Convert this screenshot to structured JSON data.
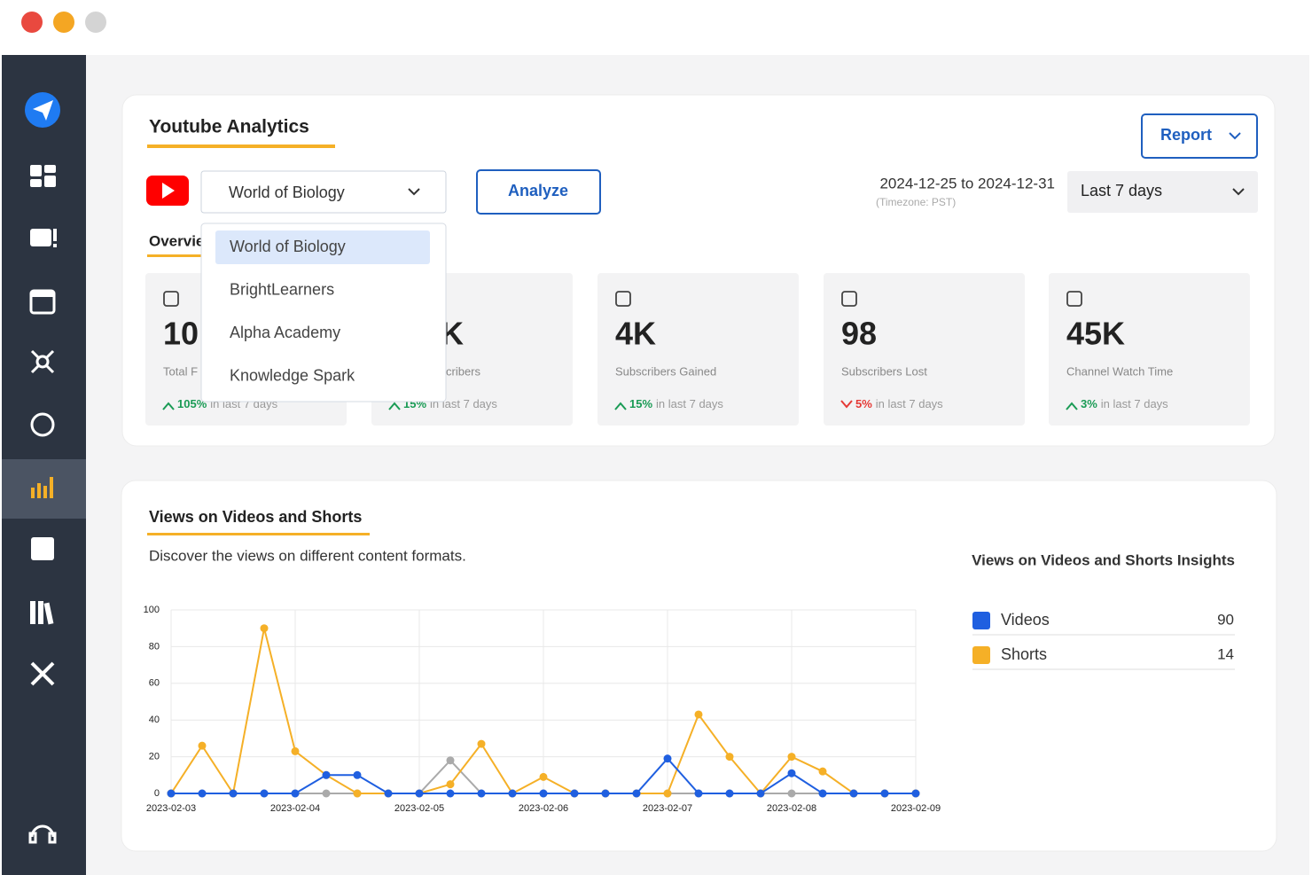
{
  "header": {
    "title": "Youtube Analytics",
    "report": "Report"
  },
  "channel": {
    "selected": "World of Biology",
    "options": [
      "World of Biology",
      "BrightLearners",
      "Alpha Academy",
      "Knowledge Spark"
    ]
  },
  "analyze": "Analyze",
  "date": {
    "range": "2024-12-25 to 2024-12-31",
    "timezone": "(Timezone: PST)",
    "period": "Last 7 days"
  },
  "tab": "Overview",
  "cards": [
    {
      "value": "10",
      "label": "Total F",
      "change": "105%",
      "period": "in last 7 days",
      "trend": "up"
    },
    {
      "value": "K",
      "label": "cribers",
      "change": "15%",
      "period": "in last 7 days",
      "trend": "up"
    },
    {
      "value": "4K",
      "label": "Subscribers Gained",
      "change": "15%",
      "period": "in last 7 days",
      "trend": "up"
    },
    {
      "value": "98",
      "label": "Subscribers Lost",
      "change": "5%",
      "period": "in last 7 days",
      "trend": "down"
    },
    {
      "value": "45K",
      "label": "Channel Watch Time",
      "change": "3%",
      "period": "in last 7 days",
      "trend": "up"
    }
  ],
  "chart_data": {
    "type": "line",
    "title": "Views on Videos and Shorts",
    "subtitle": "Discover the views on different content formats.",
    "insights_title": "Views on Videos and Shorts Insights",
    "categories": [
      "2023-02-03",
      null,
      null,
      null,
      "2023-02-04",
      null,
      null,
      null,
      "2023-02-05",
      null,
      null,
      null,
      "2023-02-06",
      null,
      null,
      null,
      "2023-02-07",
      null,
      null,
      null,
      "2023-02-08",
      null,
      null,
      null,
      "2023-02-09"
    ],
    "series": [
      {
        "color": "#aaaaaa",
        "values": [
          0,
          0,
          0,
          0,
          0,
          0,
          0,
          0,
          0,
          18,
          0,
          0,
          0,
          0,
          0,
          0,
          0,
          0,
          0,
          0,
          0,
          0,
          0,
          0,
          0
        ]
      },
      {
        "name": "Shorts",
        "total": 14,
        "color": "#f5b027",
        "values": [
          0,
          26,
          0,
          90,
          23,
          10,
          0,
          0,
          0,
          5,
          27,
          0,
          9,
          0,
          0,
          0,
          0,
          43,
          20,
          0,
          20,
          12,
          0,
          0,
          0
        ]
      },
      {
        "name": "Videos",
        "total": 90,
        "color": "#1f5fe0",
        "values": [
          0,
          0,
          0,
          0,
          0,
          10,
          10,
          0,
          0,
          0,
          0,
          0,
          0,
          0,
          0,
          0,
          19,
          0,
          0,
          0,
          11,
          0,
          0,
          0,
          0
        ]
      }
    ],
    "ylim": [
      0,
      100
    ],
    "yticks": [
      0,
      20,
      40,
      60,
      80,
      100
    ],
    "grid": true
  }
}
